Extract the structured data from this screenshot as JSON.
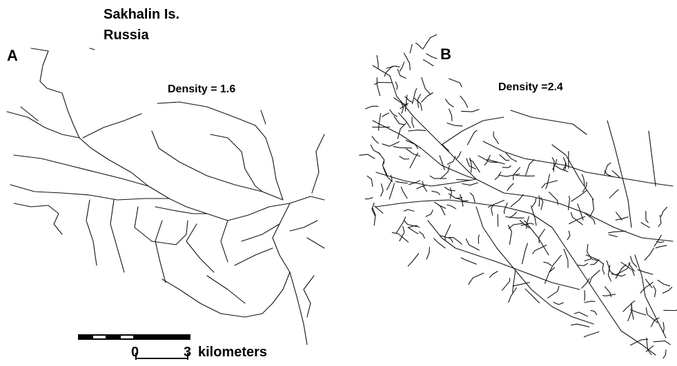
{
  "title": {
    "line1": "Sakhalin Is.",
    "line2": "Russia"
  },
  "panels": [
    {
      "label": "A",
      "density": "Density = 1.6"
    },
    {
      "label": "B",
      "density": "Density =2.4"
    }
  ],
  "scale_bar": {
    "start": "0",
    "end": "3",
    "unit": "kilometers"
  }
}
